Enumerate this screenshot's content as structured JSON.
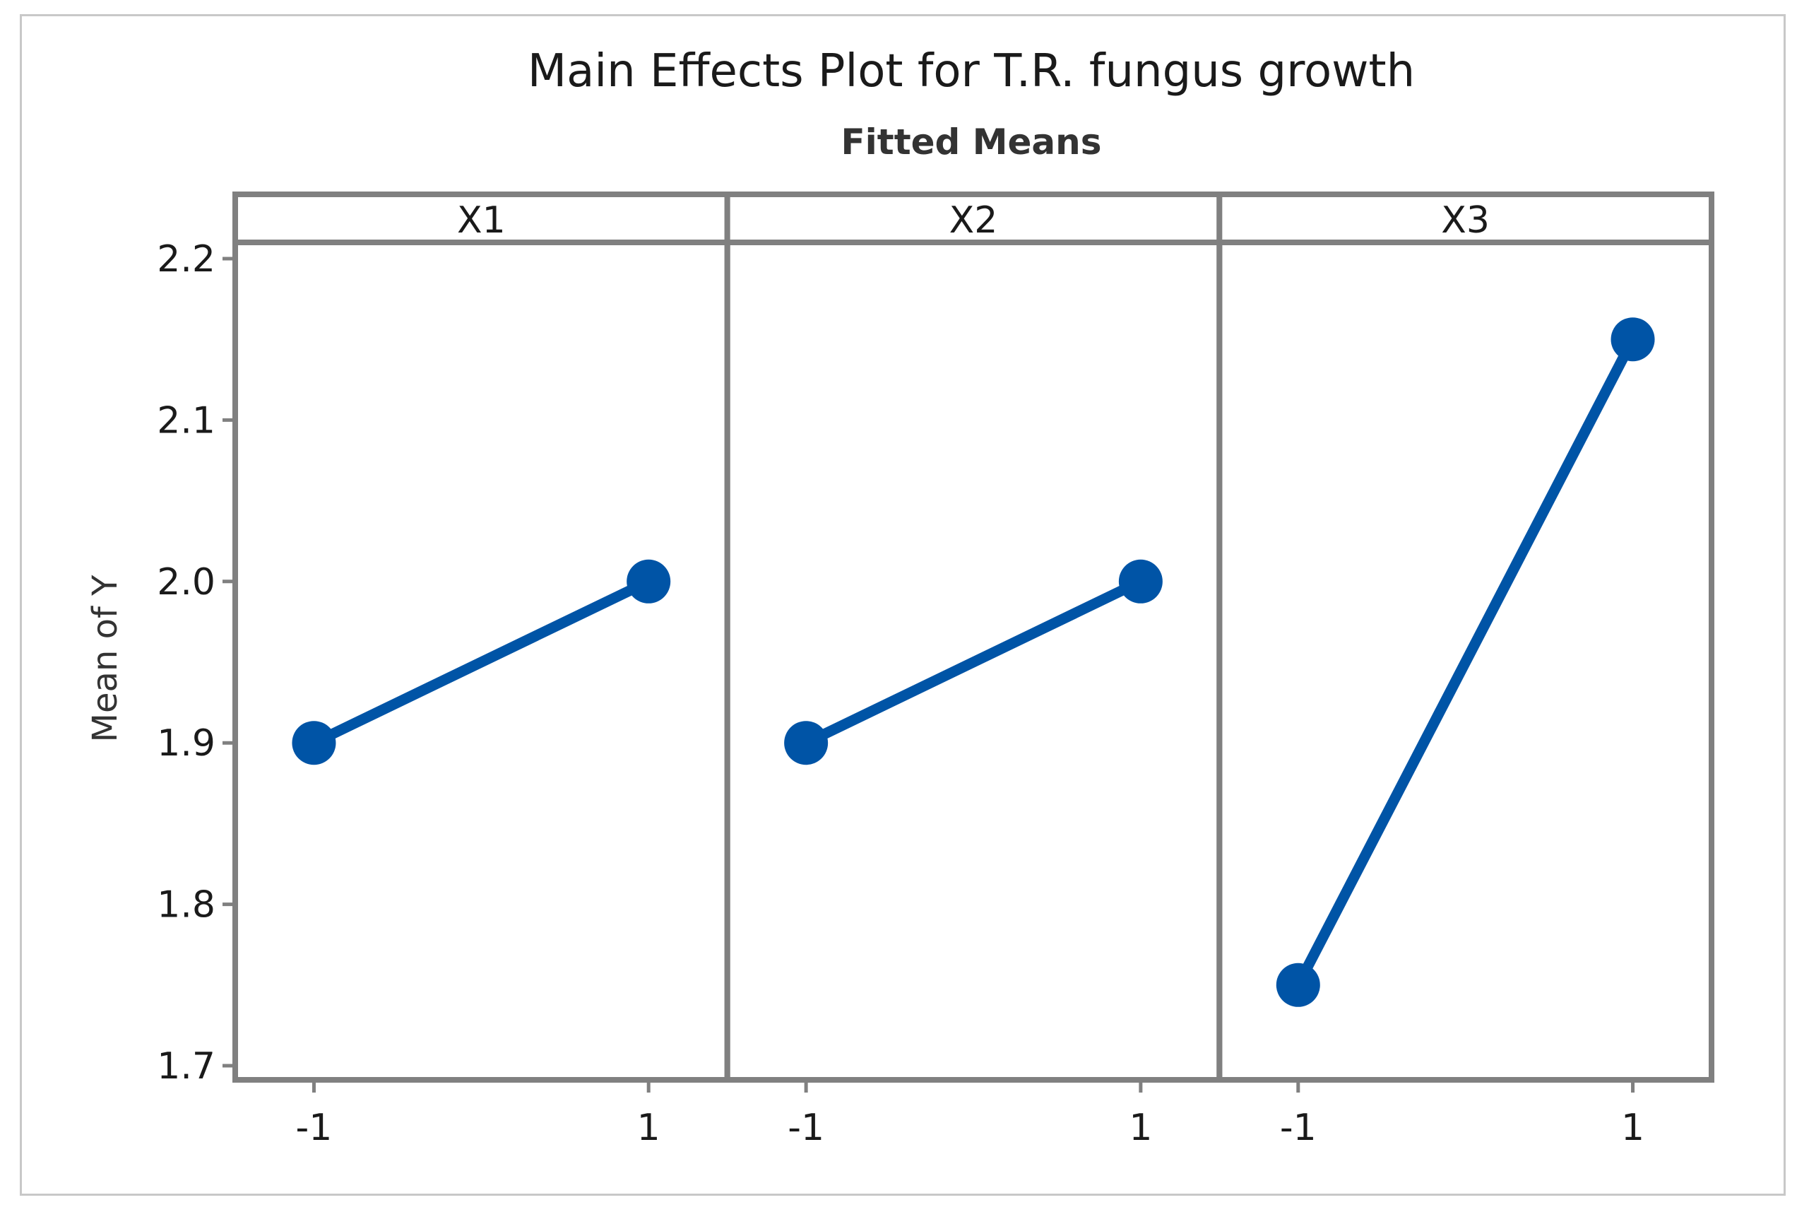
{
  "chart_data": {
    "type": "line",
    "title": "Main Effects Plot for T.R. fungus growth",
    "subtitle": "Fitted Means",
    "ylabel": "Mean of Y",
    "xlabel": "",
    "ylim": [
      1.7,
      2.2
    ],
    "y_ticks": [
      "1.7",
      "1.8",
      "1.9",
      "2.0",
      "2.1",
      "2.2"
    ],
    "x_levels": [
      "-1",
      "1"
    ],
    "grid": false,
    "legend": "none",
    "line_color": "#0054a6",
    "frame_color": "#808080",
    "panels": [
      {
        "factor": "X1",
        "x": [
          "-1",
          "1"
        ],
        "values": [
          1.9,
          2.0
        ]
      },
      {
        "factor": "X2",
        "x": [
          "-1",
          "1"
        ],
        "values": [
          1.9,
          2.0
        ]
      },
      {
        "factor": "X3",
        "x": [
          "-1",
          "1"
        ],
        "values": [
          1.75,
          2.15
        ]
      }
    ]
  }
}
